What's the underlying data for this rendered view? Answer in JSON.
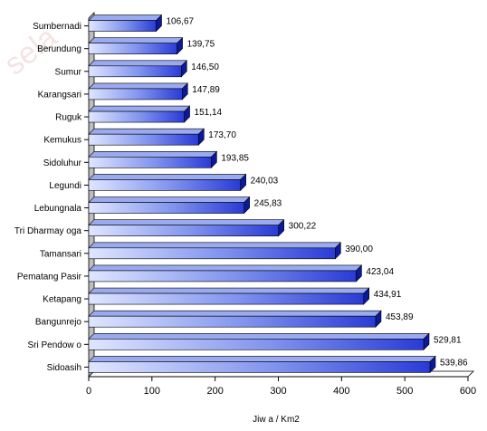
{
  "watermark": "sela",
  "chart_data": {
    "type": "bar",
    "orientation": "horizontal",
    "categories": [
      "Sumbernadi",
      "Berundung",
      "Sumur",
      "Karangsari",
      "Ruguk",
      "Kemukus",
      "Sidoluhur",
      "Legundi",
      "Lebungnala",
      "Tri Dharmay oga",
      "Tamansari",
      "Pematang Pasir",
      "Ketapang",
      "Bangunrejo",
      "Sri Pendow o",
      "Sidoasih"
    ],
    "values": [
      106.67,
      139.75,
      146.5,
      147.89,
      151.14,
      173.7,
      193.85,
      240.03,
      245.83,
      300.22,
      390.0,
      423.04,
      434.91,
      453.89,
      529.81,
      539.86
    ],
    "value_labels": [
      "106,67",
      "139,75",
      "146,50",
      "147,89",
      "151,14",
      "173,70",
      "193,85",
      "240,03",
      "245,83",
      "300,22",
      "390,00",
      "423,04",
      "434,91",
      "453,89",
      "529,81",
      "539,86"
    ],
    "xlabel": "Jiw a / Km2",
    "ylabel": "",
    "title": "",
    "xlim": [
      0,
      600
    ],
    "x_ticks": [
      "0",
      "100",
      "200",
      "300",
      "400",
      "500",
      "600"
    ],
    "grid": false,
    "legend": "none",
    "colors": {
      "bar_light": "#dde5ff",
      "bar_dark": "#2b3ed8",
      "bar_top": "#9aaaf0",
      "bar_end": "#0a1a9a",
      "wall": "#bdbdbd"
    }
  }
}
